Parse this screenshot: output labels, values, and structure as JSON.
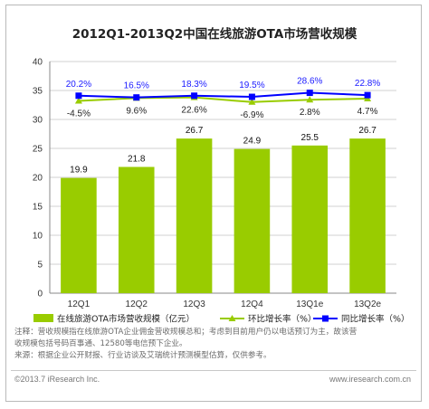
{
  "colors": {
    "bar": "#99cc00",
    "yoy_line": "#0000ff",
    "qoq_line": "#99cc00",
    "grid": "#d0d0d0"
  },
  "chart_data": {
    "type": "bar",
    "title": "2012Q1-2013Q2中国在线旅游OTA市场营收规模",
    "categories": [
      "12Q1",
      "12Q2",
      "12Q3",
      "12Q4",
      "13Q1e",
      "13Q2e"
    ],
    "ylim": [
      0,
      40
    ],
    "yticks": [
      0,
      5,
      10,
      15,
      20,
      25,
      30,
      35,
      40
    ],
    "ytick_labels": [
      "0",
      "5",
      "10",
      "15",
      "20",
      "25",
      "30",
      "35",
      "40"
    ],
    "grid": true,
    "legend_position": "bottom",
    "series": [
      {
        "name": "在线旅游OTA市场营收规模（亿元）",
        "kind": "bar",
        "values": [
          19.9,
          21.8,
          26.7,
          24.9,
          25.5,
          26.7
        ],
        "value_labels": [
          "19.9",
          "21.8",
          "26.7",
          "24.9",
          "25.5",
          "26.7"
        ]
      },
      {
        "name": "环比增长率（%）",
        "kind": "line",
        "marker": "triangle",
        "plot_values": [
          33.2,
          33.7,
          33.8,
          33.0,
          33.4,
          33.6
        ],
        "value_labels": [
          "-4.5%",
          "9.6%",
          "22.6%",
          "-6.9%",
          "2.8%",
          "4.7%"
        ]
      },
      {
        "name": "同比增长率（%）",
        "kind": "line",
        "marker": "square",
        "plot_values": [
          34.1,
          33.8,
          34.1,
          33.9,
          34.6,
          34.2
        ],
        "value_labels": [
          "20.2%",
          "16.5%",
          "18.3%",
          "19.5%",
          "28.6%",
          "22.8%"
        ]
      }
    ]
  },
  "notes": {
    "line1": "注释：营收规模指在线旅游OTA企业佣金营收规模总和；考虑到目前用户仍以电话预订为主，故该营",
    "line2": "收规模包括号码百事通、12580等电信预下企业。",
    "line3": "来源：根据企业公开财报、行业访谈及艾瑞统计预测模型估算，仅供参考。"
  },
  "footer": {
    "copyright": "©2013.7 iResearch Inc.",
    "website": "www.iresearch.com.cn"
  }
}
